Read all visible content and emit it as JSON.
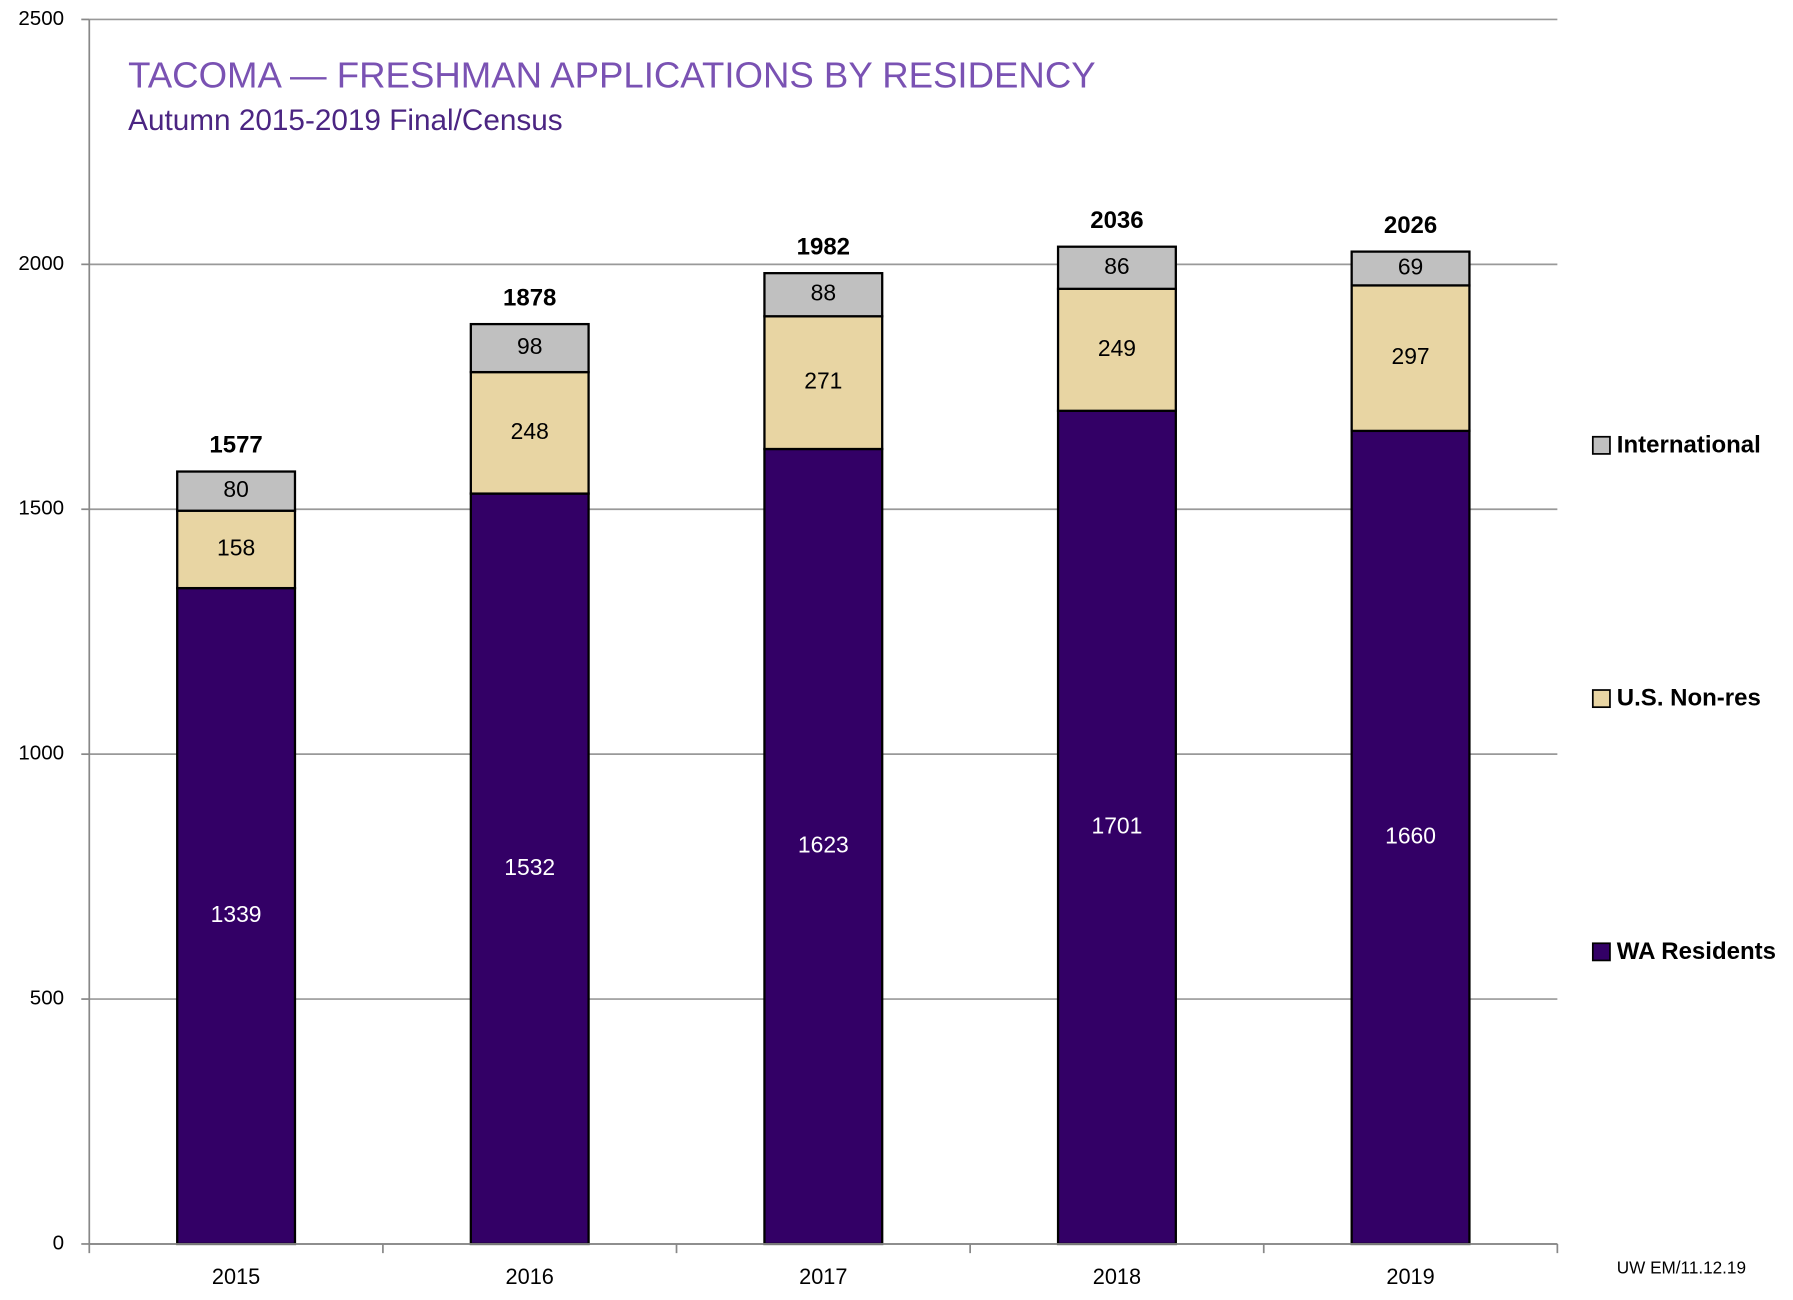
{
  "chart_data": {
    "type": "stacked_bar",
    "title": "TACOMA — FRESHMAN APPLICATIONS BY RESIDENCY",
    "subtitle": "Autumn 2015-2019 Final/Census",
    "categories": [
      "2015",
      "2016",
      "2017",
      "2018",
      "2019"
    ],
    "series": [
      {
        "name": "WA Residents",
        "color": "#330066",
        "values": [
          1339,
          1532,
          1623,
          1701,
          1660
        ]
      },
      {
        "name": "U.S. Non-res",
        "color": "#e8d5a3",
        "values": [
          158,
          248,
          271,
          249,
          297
        ]
      },
      {
        "name": "International",
        "color": "#c0c0c0",
        "values": [
          80,
          98,
          88,
          86,
          69
        ]
      }
    ],
    "totals": [
      1577,
      1878,
      1982,
      2036,
      2026
    ],
    "ylim": [
      0,
      2500
    ],
    "yticks": [
      0,
      500,
      1000,
      1500,
      2000,
      2500
    ],
    "grid": true,
    "legend": "right",
    "note": "UW EM/11.12.19"
  }
}
